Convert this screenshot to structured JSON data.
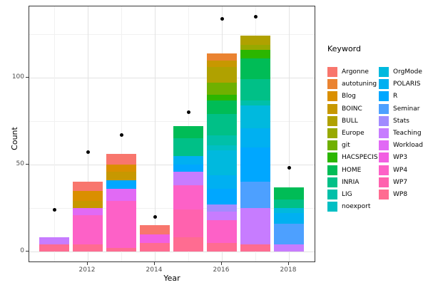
{
  "chart_data": {
    "type": "bar",
    "stacked": true,
    "orientation": "vertical",
    "title": "",
    "xlabel": "Year",
    "ylabel": "Count",
    "legend_title": "Keyword",
    "legend_position": "right",
    "grid": true,
    "categories": [
      2011,
      2012,
      2013,
      2014,
      2015,
      2016,
      2017,
      2018
    ],
    "x_ticks": {
      "labels": [
        "2012",
        "2014",
        "2016",
        "2018"
      ],
      "indices": [
        1,
        3,
        5,
        7
      ]
    },
    "x_minor_indices": [
      0,
      2,
      4,
      6
    ],
    "y_ticks": {
      "labels": [
        "0",
        "50",
        "100"
      ],
      "values": [
        0,
        50,
        100
      ]
    },
    "y_minor": [
      25,
      75,
      125
    ],
    "ylim": [
      -6.5,
      141
    ],
    "series": [
      {
        "name": "Argonne",
        "color": "#F8766D",
        "values": [
          0,
          5,
          6,
          5,
          0,
          0,
          0,
          0
        ]
      },
      {
        "name": "autotuning",
        "color": "#EA8331",
        "values": [
          0,
          0,
          0,
          0,
          0,
          4,
          0,
          0
        ]
      },
      {
        "name": "Blog",
        "color": "#DA8F00",
        "values": [
          0,
          6,
          4,
          0,
          0,
          0,
          0,
          0
        ]
      },
      {
        "name": "BOINC",
        "color": "#C79800",
        "values": [
          0,
          4,
          5,
          0,
          0,
          4,
          0,
          0
        ]
      },
      {
        "name": "BULL",
        "color": "#B0A100",
        "values": [
          0,
          0,
          0,
          0,
          0,
          9,
          5,
          0
        ]
      },
      {
        "name": "Europe",
        "color": "#97A900",
        "values": [
          0,
          0,
          0,
          0,
          0,
          0,
          3,
          0
        ]
      },
      {
        "name": "git",
        "color": "#6FB000",
        "values": [
          0,
          0,
          0,
          0,
          0,
          7,
          0,
          0
        ]
      },
      {
        "name": "HACSPECIS",
        "color": "#2BB600",
        "values": [
          0,
          0,
          0,
          0,
          0,
          3,
          5,
          0
        ]
      },
      {
        "name": "HOME",
        "color": "#00BC56",
        "values": [
          0,
          0,
          0,
          0,
          7,
          8,
          12,
          7
        ]
      },
      {
        "name": "INRIA",
        "color": "#00C087",
        "values": [
          0,
          0,
          0,
          0,
          10,
          12,
          12,
          5
        ]
      },
      {
        "name": "LIG",
        "color": "#00C0A9",
        "values": [
          0,
          0,
          0,
          0,
          0,
          6,
          3,
          0
        ]
      },
      {
        "name": "noexport",
        "color": "#00BFC4",
        "values": [
          0,
          0,
          0,
          0,
          0,
          3,
          0,
          0
        ]
      },
      {
        "name": "OrgMode",
        "color": "#00B9DE",
        "values": [
          0,
          0,
          0,
          0,
          0,
          14,
          13,
          3
        ]
      },
      {
        "name": "POLARIS",
        "color": "#00B0F1",
        "values": [
          0,
          0,
          0,
          0,
          5,
          8,
          11,
          6
        ]
      },
      {
        "name": "R",
        "color": "#00A7FF",
        "values": [
          0,
          0,
          5,
          0,
          4,
          9,
          20,
          0
        ]
      },
      {
        "name": "Seminar",
        "color": "#4DA0FF",
        "values": [
          0,
          0,
          0,
          0,
          0,
          0,
          15,
          12
        ]
      },
      {
        "name": "Stats",
        "color": "#A18BFF",
        "values": [
          0,
          0,
          0,
          0,
          0,
          4,
          0,
          0
        ]
      },
      {
        "name": "Teaching",
        "color": "#C77CFF",
        "values": [
          4,
          0,
          0,
          0,
          8,
          5,
          21,
          4
        ]
      },
      {
        "name": "Workload",
        "color": "#E16AF5",
        "values": [
          0,
          4,
          7,
          0,
          0,
          0,
          0,
          0
        ]
      },
      {
        "name": "WP3",
        "color": "#F25FE2",
        "values": [
          0,
          0,
          0,
          5,
          0,
          0,
          0,
          0
        ]
      },
      {
        "name": "WP4",
        "color": "#FD61C7",
        "values": [
          0,
          17,
          27,
          0,
          14,
          13,
          0,
          0
        ]
      },
      {
        "name": "WP7",
        "color": "#FF62AE",
        "values": [
          0,
          0,
          0,
          0,
          16,
          0,
          0,
          0
        ]
      },
      {
        "name": "WP8",
        "color": "#FF6C91",
        "values": [
          4,
          4,
          2,
          5,
          8,
          5,
          4,
          0
        ]
      }
    ],
    "points_series": {
      "name": "yearly-total-dots",
      "color": "#000000",
      "values": [
        24,
        57,
        67,
        20,
        80,
        134,
        135,
        48
      ]
    }
  }
}
